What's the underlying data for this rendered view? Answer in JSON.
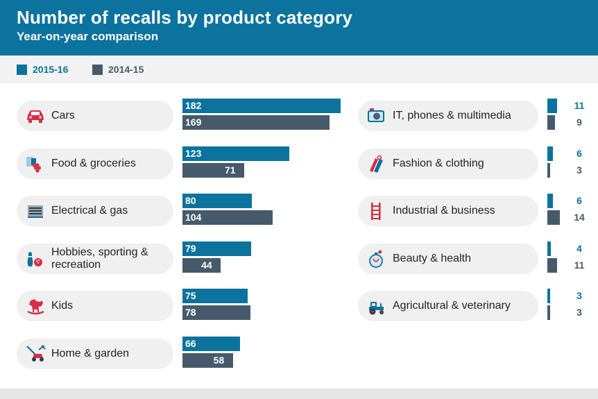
{
  "header": {
    "title": "Number of recalls by product category",
    "subtitle": "Year-on-year comparison"
  },
  "colors": {
    "header_bg": "#0b739d",
    "series_2015_16": "#0b739d",
    "series_2014_15": "#465a6b",
    "icon_red": "#d62e45",
    "icon_blue": "#0b739d"
  },
  "chart_data": {
    "type": "bar",
    "orientation": "horizontal",
    "title": "Number of recalls by product category",
    "subtitle": "Year-on-year comparison",
    "legend": {
      "placement": "top-left"
    },
    "grid": false,
    "series": [
      {
        "name": "2015-16",
        "color": "#0b739d",
        "values": [
          182,
          123,
          80,
          79,
          75,
          66,
          11,
          6,
          6,
          4,
          3
        ]
      },
      {
        "name": "2014-15",
        "color": "#465a6b",
        "values": [
          169,
          71,
          104,
          44,
          78,
          58,
          9,
          3,
          14,
          11,
          3
        ]
      }
    ],
    "categories": [
      {
        "label": "Cars",
        "icon": "car-icon"
      },
      {
        "label": "Food & groceries",
        "icon": "groceries-icon"
      },
      {
        "label": "Electrical & gas",
        "icon": "appliance-icon"
      },
      {
        "label": "Hobbies, sporting & recreation",
        "icon": "bowling-icon"
      },
      {
        "label": "Kids",
        "icon": "rocking-horse-icon"
      },
      {
        "label": "Home & garden",
        "icon": "lawnmower-icon"
      },
      {
        "label": "IT, phones & multimedia",
        "icon": "camera-icon"
      },
      {
        "label": "Fashion & clothing",
        "icon": "clothing-tag-icon"
      },
      {
        "label": "Industrial & business",
        "icon": "ladder-icon"
      },
      {
        "label": "Beauty & health",
        "icon": "perfume-icon"
      },
      {
        "label": "Agricultural & veterinary",
        "icon": "tractor-icon"
      }
    ]
  }
}
